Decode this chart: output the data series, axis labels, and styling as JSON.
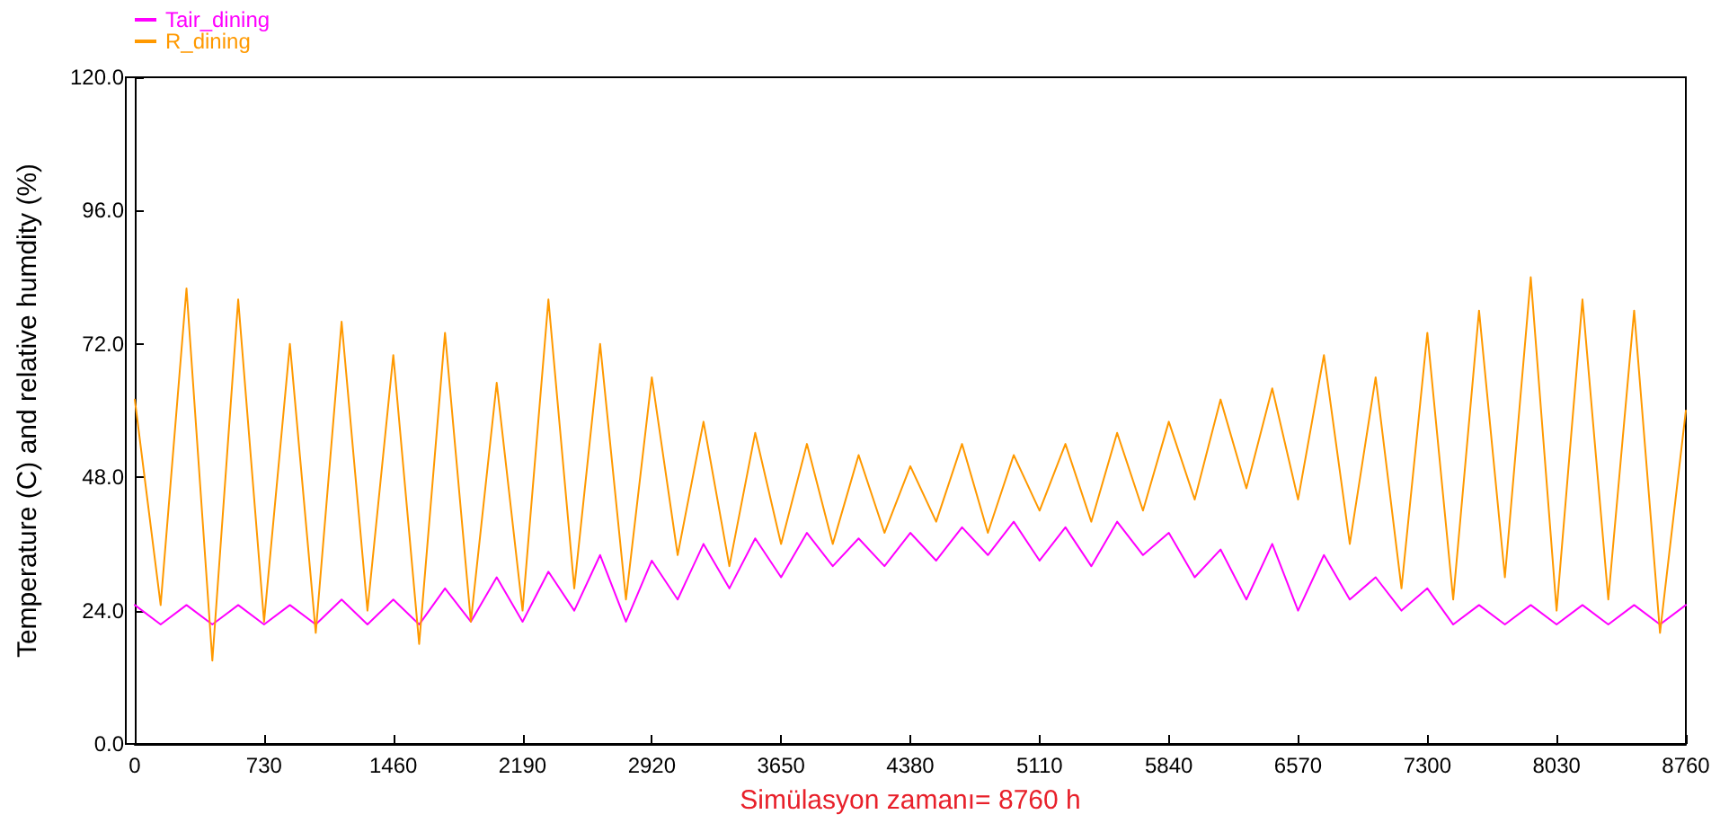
{
  "chart_data": {
    "type": "line",
    "xlabel": "Simülasyon zamanı= 8760 h",
    "ylabel": "Temperature (C) and relative humdity (%)",
    "x": [
      0,
      146,
      292,
      438,
      584,
      730,
      876,
      1022,
      1168,
      1314,
      1460,
      1606,
      1752,
      1898,
      2044,
      2190,
      2336,
      2482,
      2628,
      2774,
      2920,
      3066,
      3212,
      3358,
      3504,
      3650,
      3796,
      3942,
      4088,
      4234,
      4380,
      4526,
      4672,
      4818,
      4964,
      5110,
      5256,
      5402,
      5548,
      5694,
      5840,
      5986,
      6132,
      6278,
      6424,
      6570,
      6716,
      6862,
      7008,
      7154,
      7300,
      7446,
      7592,
      7738,
      7884,
      8030,
      8176,
      8322,
      8468,
      8614,
      8760
    ],
    "series": [
      {
        "name": "Tair_dining",
        "color": "#ff00ff",
        "values": [
          25,
          21.5,
          25,
          21.5,
          25,
          21.5,
          25,
          21.5,
          26,
          21.5,
          26,
          21.5,
          28,
          22,
          30,
          22,
          31,
          24,
          34,
          22,
          33,
          26,
          36,
          28,
          37,
          30,
          38,
          32,
          37,
          32,
          38,
          33,
          39,
          34,
          40,
          33,
          39,
          32,
          40,
          34,
          38,
          30,
          35,
          26,
          36,
          24,
          34,
          26,
          30,
          24,
          28,
          21.5,
          25,
          21.5,
          25,
          21.5,
          25,
          21.5,
          25,
          21.5,
          25
        ]
      },
      {
        "name": "R_dining",
        "color": "#ff9900",
        "values": [
          62,
          25,
          82,
          15,
          80,
          22,
          72,
          20,
          76,
          24,
          70,
          18,
          74,
          22,
          65,
          24,
          80,
          28,
          72,
          26,
          66,
          34,
          58,
          32,
          56,
          36,
          54,
          36,
          52,
          38,
          50,
          40,
          54,
          38,
          52,
          42,
          54,
          40,
          56,
          42,
          58,
          44,
          62,
          46,
          64,
          44,
          70,
          36,
          66,
          28,
          74,
          26,
          78,
          30,
          84,
          24,
          80,
          26,
          78,
          20,
          60
        ]
      }
    ],
    "xlim": [
      0,
      8760
    ],
    "xticks": [
      0,
      730,
      1460,
      2190,
      2920,
      3650,
      4380,
      5110,
      5840,
      6570,
      7300,
      8030,
      8760
    ],
    "ylim": [
      0,
      120
    ],
    "yticks": [
      {
        "value": 0,
        "label": "0.0"
      },
      {
        "value": 24,
        "label": "24.0"
      },
      {
        "value": 48,
        "label": "48.0"
      },
      {
        "value": 72,
        "label": "72.0"
      },
      {
        "value": 96,
        "label": "96.0"
      },
      {
        "value": 120,
        "label": "120.0"
      }
    ],
    "legend": "top left",
    "grid": false,
    "marker": "none",
    "line_style": "solid"
  }
}
